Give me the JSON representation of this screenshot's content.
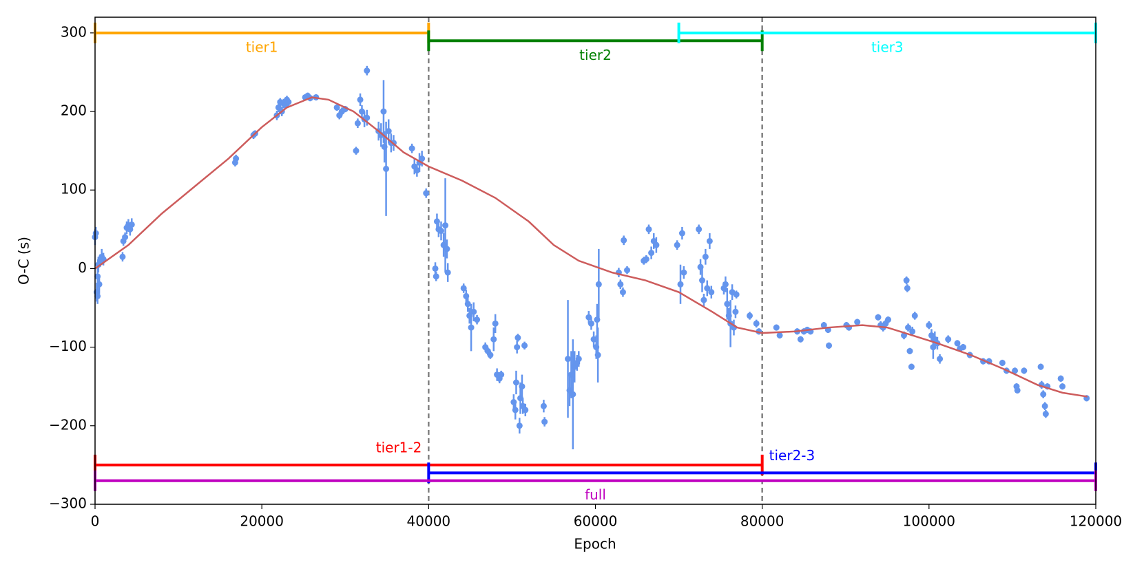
{
  "chart_data": {
    "type": "errorbar",
    "xlabel": "Epoch",
    "ylabel": "O-C (s)",
    "xlim": [
      0,
      120000
    ],
    "ylim": [
      -300,
      320
    ],
    "xticks": [
      0,
      20000,
      40000,
      60000,
      80000,
      100000,
      120000
    ],
    "yticks": [
      {
        "value": -300,
        "label": "−300"
      },
      {
        "value": -200,
        "label": "−200"
      },
      {
        "value": -100,
        "label": "−100"
      },
      0,
      100,
      200,
      300
    ],
    "color": "#6495ed",
    "x": [
      0,
      100,
      200,
      300,
      400,
      500,
      600,
      800,
      1000,
      300,
      3300,
      3400,
      3600,
      3800,
      4000,
      4200,
      4400,
      16800,
      16900,
      19000,
      19200,
      21800,
      22000,
      22200,
      22400,
      22600,
      22800,
      23000,
      23200,
      25200,
      25500,
      25800,
      26500,
      29000,
      29300,
      29600,
      30000,
      31300,
      31500,
      31800,
      32000,
      32300,
      32600,
      32600,
      34000,
      34300,
      34600,
      34700,
      34900,
      35200,
      35500,
      35800,
      38000,
      38300,
      38600,
      38900,
      39200,
      39700,
      40800,
      40900,
      41000,
      41200,
      41500,
      41800,
      42000,
      42200,
      42300,
      44200,
      44500,
      44700,
      44900,
      45100,
      45400,
      45800,
      46800,
      47100,
      47400,
      47800,
      48000,
      48200,
      48500,
      48700,
      50200,
      50400,
      50500,
      50600,
      50700,
      50900,
      51000,
      51200,
      51300,
      51500,
      51600,
      53800,
      53900,
      56700,
      56900,
      57100,
      57300,
      57500,
      57800,
      58000,
      59200,
      59500,
      59800,
      60100,
      60200,
      60300,
      60400,
      62800,
      63000,
      63300,
      63400,
      63800,
      65800,
      66100,
      66400,
      66700,
      67000,
      67300,
      69800,
      70200,
      70400,
      70600,
      72400,
      72600,
      72800,
      73000,
      73200,
      73400,
      73700,
      73900,
      75400,
      75600,
      75800,
      76000,
      76200,
      76400,
      76600,
      76800,
      76900,
      78500,
      79300,
      79600,
      81700,
      82100,
      84200,
      84600,
      85000,
      85400,
      85800,
      87400,
      87900,
      88000,
      90100,
      90400,
      91400,
      93900,
      94200,
      94500,
      94800,
      95100,
      97000,
      97300,
      97400,
      97500,
      97700,
      97900,
      98000,
      98300,
      100000,
      100300,
      100500,
      100700,
      101000,
      101300,
      102300,
      103400,
      103700,
      104100,
      104900,
      106500,
      107200,
      108800,
      109300,
      110300,
      110500,
      110600,
      111400,
      113400,
      113500,
      113700,
      113900,
      114000,
      114200,
      115800,
      116000,
      118900
    ],
    "values": [
      40,
      45,
      -30,
      -10,
      5,
      -20,
      10,
      15,
      12,
      -35,
      15,
      35,
      40,
      52,
      55,
      50,
      56,
      135,
      140,
      170,
      172,
      195,
      205,
      212,
      200,
      210,
      208,
      215,
      212,
      218,
      220,
      217,
      218,
      205,
      195,
      200,
      203,
      150,
      185,
      215,
      200,
      190,
      192,
      252,
      175,
      170,
      200,
      155,
      127,
      175,
      160,
      160,
      153,
      130,
      125,
      135,
      140,
      96,
      0,
      -10,
      60,
      50,
      48,
      30,
      55,
      25,
      -5,
      -25,
      -35,
      -45,
      -60,
      -75,
      -55,
      -65,
      -100,
      -105,
      -110,
      -90,
      -70,
      -135,
      -140,
      -135,
      -170,
      -180,
      -145,
      -100,
      -88,
      -200,
      -165,
      -150,
      -175,
      -98,
      -180,
      -175,
      -195,
      -115,
      -155,
      -135,
      -160,
      -125,
      -120,
      -115,
      -62,
      -70,
      -90,
      -100,
      -65,
      -110,
      -20,
      -5,
      -20,
      -30,
      36,
      -2,
      10,
      12,
      50,
      20,
      35,
      30,
      30,
      -20,
      45,
      -5,
      50,
      2,
      -15,
      -40,
      15,
      -25,
      35,
      -30,
      -25,
      -20,
      -45,
      -60,
      -70,
      -30,
      -75,
      -55,
      -33,
      -60,
      -70,
      -80,
      -75,
      -85,
      -80,
      -90,
      -80,
      -78,
      -80,
      -72,
      -78,
      -98,
      -72,
      -75,
      -68,
      -62,
      -72,
      -75,
      -70,
      -65,
      -85,
      -15,
      -25,
      -75,
      -105,
      -125,
      -80,
      -60,
      -72,
      -85,
      -100,
      -90,
      -95,
      -115,
      -90,
      -95,
      -102,
      -100,
      -110,
      -118,
      -118,
      -120,
      -130,
      -130,
      -150,
      -155,
      -130,
      -125,
      -148,
      -160,
      -175,
      -185,
      -150,
      -140,
      -150,
      -165
    ],
    "errors": [
      10,
      8,
      12,
      15,
      10,
      12,
      8,
      10,
      8,
      10,
      6,
      6,
      6,
      8,
      8,
      8,
      8,
      5,
      5,
      5,
      4,
      6,
      6,
      5,
      6,
      6,
      5,
      5,
      5,
      4,
      4,
      4,
      4,
      4,
      5,
      5,
      4,
      5,
      6,
      8,
      8,
      10,
      10,
      6,
      12,
      15,
      40,
      20,
      60,
      15,
      12,
      10,
      6,
      10,
      8,
      12,
      10,
      6,
      8,
      6,
      10,
      10,
      12,
      15,
      60,
      12,
      12,
      6,
      8,
      10,
      10,
      30,
      12,
      6,
      6,
      5,
      5,
      15,
      12,
      8,
      6,
      5,
      10,
      12,
      15,
      8,
      5,
      10,
      20,
      15,
      10,
      5,
      8,
      8,
      6,
      75,
      20,
      30,
      70,
      20,
      10,
      10,
      8,
      8,
      10,
      15,
      20,
      35,
      45,
      6,
      6,
      6,
      6,
      5,
      5,
      5,
      6,
      8,
      10,
      10,
      6,
      25,
      8,
      8,
      6,
      10,
      15,
      8,
      10,
      10,
      10,
      8,
      8,
      10,
      20,
      10,
      30,
      10,
      10,
      8,
      5,
      5,
      5,
      4,
      4,
      4,
      4,
      4,
      4,
      4,
      4,
      4,
      4,
      4,
      4,
      4,
      4,
      4,
      5,
      5,
      5,
      4,
      5,
      5,
      5,
      5,
      4,
      4,
      6,
      5,
      5,
      8,
      15,
      10,
      8,
      6,
      5,
      4,
      4,
      4,
      4,
      4,
      4,
      4,
      4,
      4,
      4,
      4,
      4,
      4,
      5,
      5,
      5,
      5,
      4,
      4,
      4,
      4
    ],
    "fit": {
      "color": "#cd5c5c",
      "x": [
        0,
        4000,
        8000,
        12000,
        16000,
        20000,
        23000,
        26000,
        28000,
        31000,
        34000,
        37000,
        40000,
        44000,
        48000,
        52000,
        55000,
        58000,
        62000,
        66000,
        70000,
        74000,
        77000,
        80000,
        84000,
        88000,
        92000,
        95000,
        98000,
        101000,
        105000,
        109000,
        113000,
        116000,
        119000
      ],
      "values": [
        0,
        30,
        70,
        105,
        140,
        180,
        205,
        218,
        215,
        200,
        175,
        148,
        130,
        112,
        90,
        60,
        30,
        10,
        -5,
        -15,
        -30,
        -55,
        -75,
        -82,
        -80,
        -75,
        -72,
        -75,
        -85,
        -95,
        -110,
        -128,
        -148,
        -158,
        -163
      ]
    },
    "vlines": [
      40000,
      80000
    ],
    "ranges": [
      {
        "label": "tier1",
        "start": 0,
        "end": 40000,
        "level": 300,
        "color": "#ffa500"
      },
      {
        "label": "tier2",
        "start": 40000,
        "end": 80000,
        "level": 290,
        "color": "#008000"
      },
      {
        "label": "tier3",
        "start": 70000,
        "end": 120000,
        "level": 300,
        "color": "#00ffff"
      },
      {
        "label": "tier1-2",
        "start": 0,
        "end": 80000,
        "level": -250,
        "color": "#ff0000"
      },
      {
        "label": "tier2-3",
        "start": 40000,
        "end": 120000,
        "level": -260,
        "color": "#0000ff"
      },
      {
        "label": "full",
        "start": 0,
        "end": 120000,
        "level": -270,
        "color": "#bf00bf"
      }
    ]
  }
}
